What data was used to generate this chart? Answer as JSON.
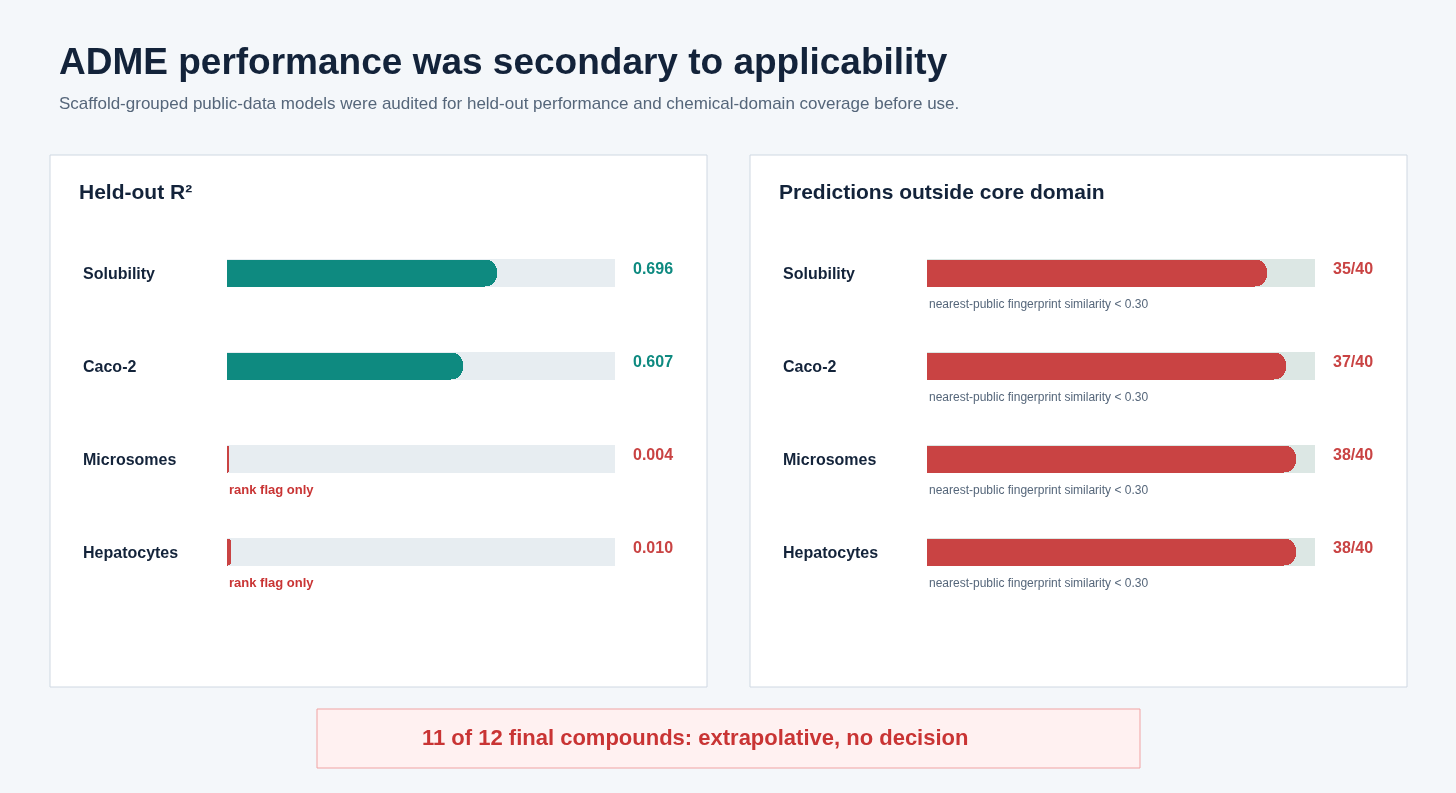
{
  "chart_data": [
    {
      "type": "other",
      "title": "ADME performance was secondary to applicability",
      "subtitle": "Scaffold-grouped public-data models were audited for held-out performance and chemical-domain coverage before use.",
      "annotations": [
        "11 of 12 final compounds: extrapolative, no decision"
      ]
    },
    {
      "type": "bar",
      "orientation": "horizontal",
      "title": "Held-out R²",
      "categories": [
        "Solubility",
        "Caco-2",
        "Microsomes",
        "Hepatocytes"
      ],
      "values": [
        0.696,
        0.607,
        0.004,
        0.01
      ],
      "colors": [
        "#0e8a80",
        "#0e8a80",
        "#c94343",
        "#c94343"
      ],
      "value_labels": [
        "0.696",
        "0.607",
        "0.004",
        "0.010"
      ],
      "xlim": [
        0,
        1
      ],
      "tick_labels": "y",
      "annotations": [
        "rank flag only",
        "rank flag only"
      ]
    },
    {
      "type": "bar",
      "orientation": "horizontal",
      "title": "Predictions outside core domain",
      "categories": [
        "Solubility",
        "Caco-2",
        "Microsomes",
        "Hepatocytes"
      ],
      "values": [
        35,
        37,
        38,
        38
      ],
      "colors": [
        "#c94343",
        "#c94343",
        "#c94343",
        "#c94343"
      ],
      "value_labels": [
        "35/40",
        "37/40",
        "38/40",
        "38/40"
      ],
      "xlim": [
        0,
        40
      ],
      "tick_labels": "y",
      "annotations": [
        "nearest-public fingerprint similarity < 0.30",
        "nearest-public fingerprint similarity < 0.30",
        "nearest-public fingerprint similarity < 0.30",
        "nearest-public fingerprint similarity < 0.30"
      ]
    }
  ]
}
